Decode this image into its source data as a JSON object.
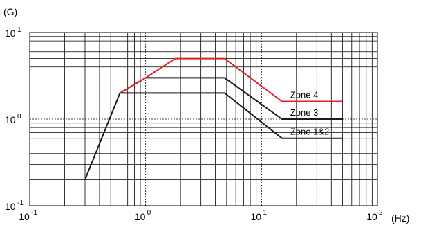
{
  "chart_data": {
    "type": "line",
    "xscale": "log",
    "yscale": "log",
    "xlabel": "(Hz)",
    "ylabel": "(G)",
    "xlim": [
      0.1,
      100
    ],
    "ylim": [
      0.1,
      10
    ],
    "x_ticks": [
      {
        "base": "10",
        "exp": "-1",
        "value": 0.1
      },
      {
        "base": "10",
        "exp": "0",
        "value": 1
      },
      {
        "base": "10",
        "exp": "1",
        "value": 10
      },
      {
        "base": "10",
        "exp": "2",
        "value": 100
      }
    ],
    "y_ticks": [
      {
        "base": "10",
        "exp": "-1",
        "value": 0.1
      },
      {
        "base": "10",
        "exp": "0",
        "value": 1
      },
      {
        "base": "10",
        "exp": "1",
        "value": 10
      }
    ],
    "grid": true,
    "series": [
      {
        "name": "Zone 4",
        "color": "#e0202a",
        "x": [
          0.6,
          1.0,
          1.8,
          4.8,
          15,
          50
        ],
        "y": [
          2.0,
          3.0,
          5.0,
          5.0,
          1.6,
          1.6
        ]
      },
      {
        "name": "Zone 3",
        "color": "#1a1a1a",
        "x": [
          0.3,
          0.6,
          1.0,
          4.8,
          15,
          50
        ],
        "y": [
          0.2,
          2.0,
          3.0,
          3.0,
          1.0,
          1.0
        ]
      },
      {
        "name": "Zone 1&2",
        "color": "#1a1a1a",
        "x": [
          0.6,
          4.8,
          15,
          50
        ],
        "y": [
          2.0,
          2.0,
          0.6,
          0.6
        ]
      }
    ]
  }
}
